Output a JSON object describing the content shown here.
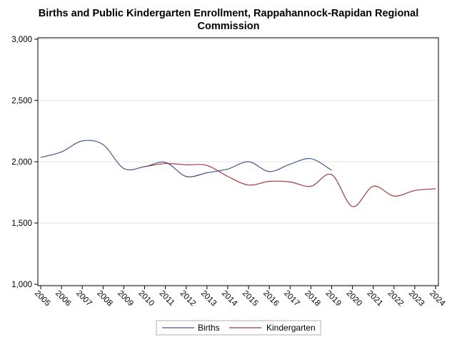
{
  "chart_data": {
    "type": "line",
    "title_lines": [
      "Births and Public Kindergarten Enrollment, Rappahannock-Rapidan Regional",
      "Commission"
    ],
    "x": [
      2005,
      2006,
      2007,
      2008,
      2009,
      2010,
      2011,
      2012,
      2013,
      2014,
      2015,
      2016,
      2017,
      2018,
      2019,
      2020,
      2021,
      2022,
      2023,
      2024
    ],
    "series": [
      {
        "name": "Births",
        "color": "#445694",
        "values": [
          2035,
          2080,
          2170,
          2140,
          1945,
          1960,
          1995,
          1880,
          1910,
          1940,
          2000,
          1920,
          1980,
          2025,
          1930,
          null,
          null,
          null,
          null,
          null
        ]
      },
      {
        "name": "Kindergarten",
        "color": "#a23a3a",
        "values": [
          null,
          null,
          null,
          null,
          null,
          1960,
          1985,
          1975,
          1970,
          1880,
          1810,
          1840,
          1835,
          1800,
          1895,
          1635,
          1800,
          1720,
          1765,
          1780
        ]
      }
    ],
    "ylim": [
      1000,
      3000
    ],
    "yticks": [
      1000,
      1500,
      2000,
      2500,
      3000
    ],
    "ytick_labels": [
      "1,000",
      "1,500",
      "2,000",
      "2,500",
      "3,000"
    ],
    "xlabel": "",
    "ylabel": "",
    "grid": "horizontal",
    "legend_position": "bottom"
  }
}
